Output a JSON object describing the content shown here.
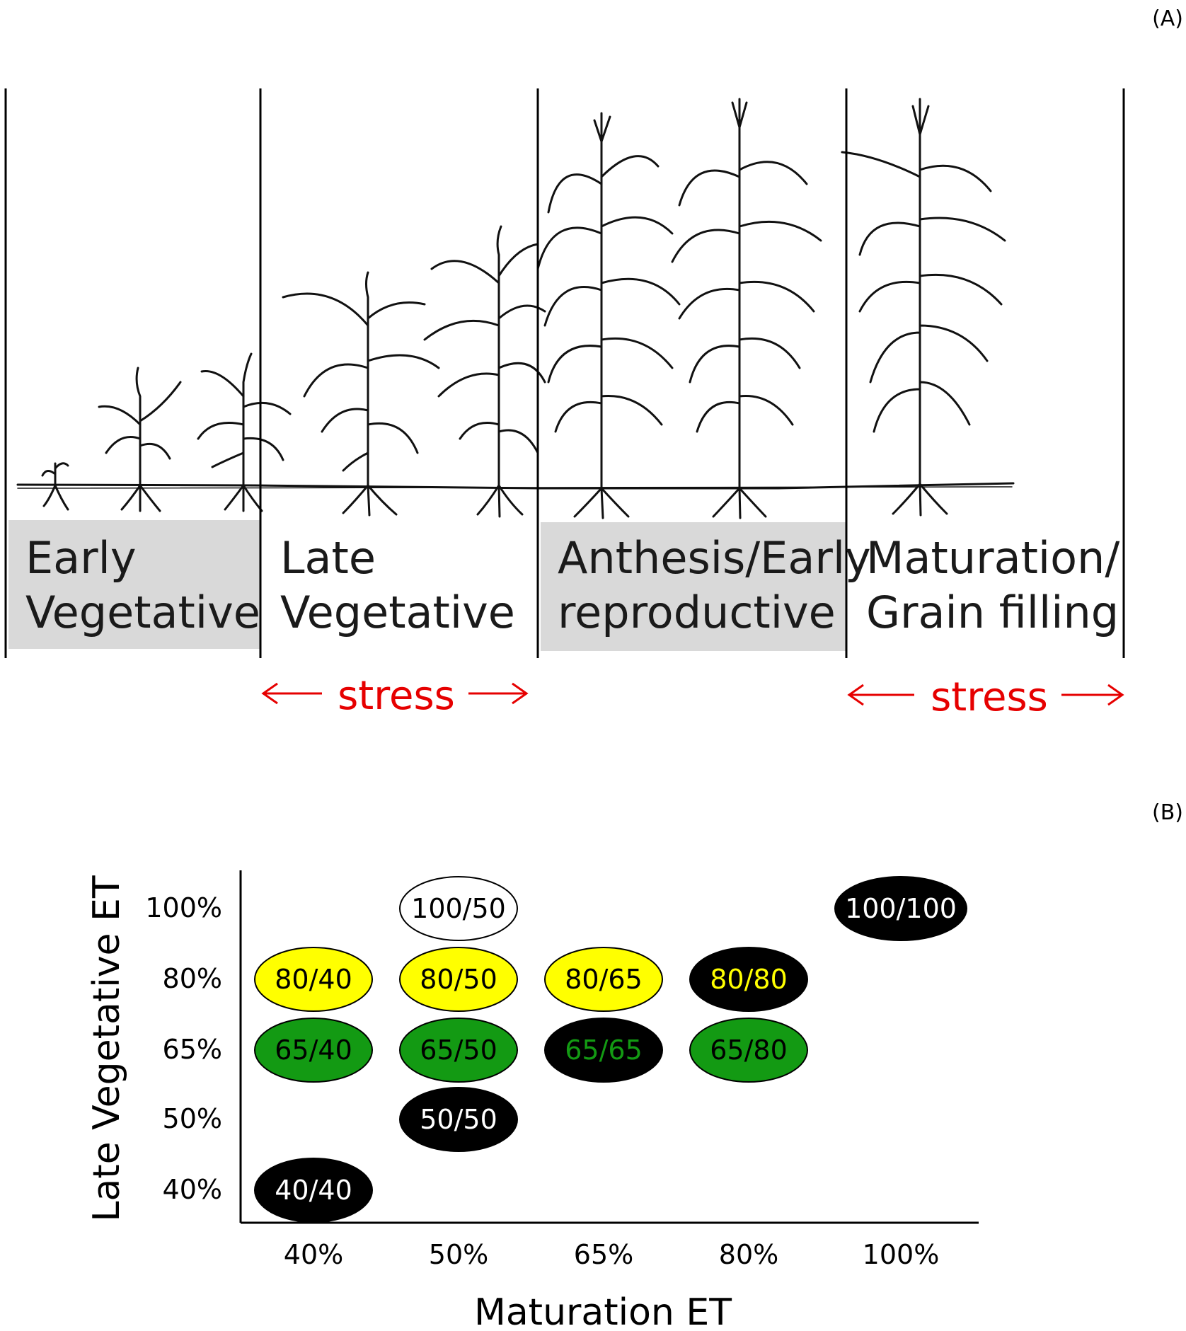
{
  "panel_a": {
    "label": "(A)",
    "stages": [
      {
        "line1": "Early",
        "line2": "Vegetative",
        "shaded": true
      },
      {
        "line1": "Late",
        "line2": "Vegetative",
        "shaded": false
      },
      {
        "line1": "Anthesis/Early",
        "line2": "reproductive",
        "shaded": true
      },
      {
        "line1": "Maturation/",
        "line2": "Grain filling",
        "shaded": false
      }
    ],
    "stress_1": "stress",
    "stress_2": "stress"
  },
  "panel_b": {
    "label": "(B)",
    "y_axis_title": "Late Vegetative ET",
    "x_axis_title": "Maturation ET",
    "x_ticks": [
      "40%",
      "50%",
      "65%",
      "80%",
      "100%"
    ],
    "y_ticks": [
      "100%",
      "80%",
      "65%",
      "50%",
      "40%"
    ],
    "treatments": [
      {
        "label": "100/50",
        "x": "50%",
        "y": "100%",
        "fill": "#ffffff",
        "text_color": "#000000"
      },
      {
        "label": "100/100",
        "x": "100%",
        "y": "100%",
        "fill": "#000000",
        "text_color": "#ffffff"
      },
      {
        "label": "80/40",
        "x": "40%",
        "y": "80%",
        "fill": "#ffff00",
        "text_color": "#000000"
      },
      {
        "label": "80/50",
        "x": "50%",
        "y": "80%",
        "fill": "#ffff00",
        "text_color": "#000000"
      },
      {
        "label": "80/65",
        "x": "65%",
        "y": "80%",
        "fill": "#ffff00",
        "text_color": "#000000"
      },
      {
        "label": "80/80",
        "x": "80%",
        "y": "80%",
        "fill": "#000000",
        "text_color": "#ffff00"
      },
      {
        "label": "65/40",
        "x": "40%",
        "y": "65%",
        "fill": "#139a13",
        "text_color": "#000000"
      },
      {
        "label": "65/50",
        "x": "50%",
        "y": "65%",
        "fill": "#139a13",
        "text_color": "#000000"
      },
      {
        "label": "65/65",
        "x": "65%",
        "y": "65%",
        "fill": "#000000",
        "text_color": "#139a13"
      },
      {
        "label": "65/80",
        "x": "80%",
        "y": "65%",
        "fill": "#139a13",
        "text_color": "#000000"
      },
      {
        "label": "50/50",
        "x": "50%",
        "y": "50%",
        "fill": "#000000",
        "text_color": "#ffffff"
      },
      {
        "label": "40/40",
        "x": "40%",
        "y": "40%",
        "fill": "#000000",
        "text_color": "#ffffff"
      }
    ],
    "colors": {
      "stress": "#e60000",
      "shade": "#d9d9d9"
    }
  }
}
